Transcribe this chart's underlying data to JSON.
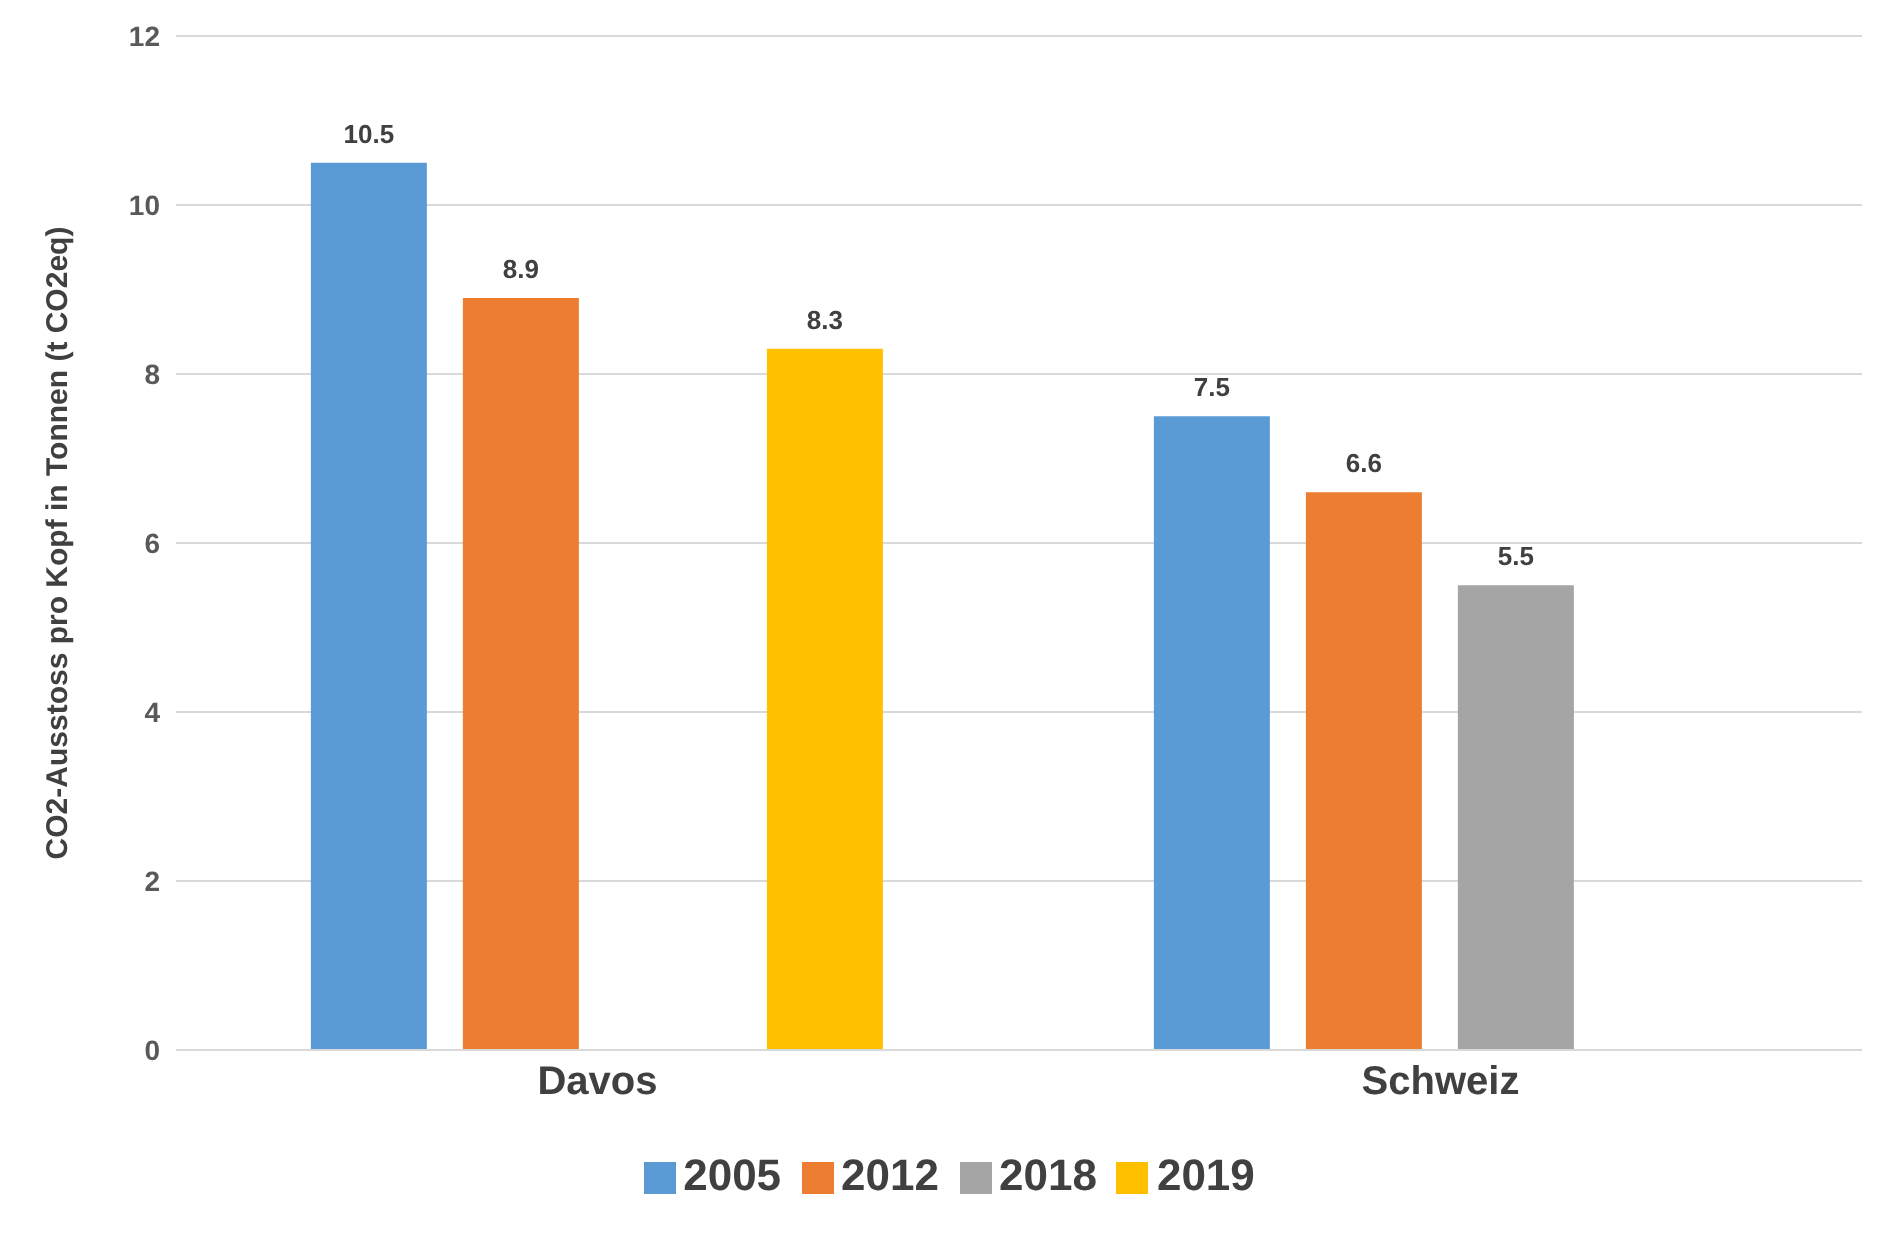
{
  "chart_data": {
    "type": "bar",
    "ylabel": "CO2-Ausstoss pro Kopf in Tonnen (t CO2eq)",
    "categories": [
      "Davos",
      "Schweiz"
    ],
    "series": [
      {
        "name": "2005",
        "color": "#5b9bd5",
        "values": [
          10.5,
          7.5
        ]
      },
      {
        "name": "2012",
        "color": "#ed7d31",
        "values": [
          8.9,
          6.6
        ]
      },
      {
        "name": "2018",
        "color": "#a5a5a5",
        "values": [
          null,
          5.5
        ]
      },
      {
        "name": "2019",
        "color": "#ffc000",
        "values": [
          8.3,
          null
        ]
      }
    ],
    "ylim": [
      0,
      12
    ],
    "yticks": [
      0,
      2,
      4,
      6,
      8,
      10,
      12
    ],
    "grid": "y",
    "legend": "bottom",
    "data_labels": true
  }
}
